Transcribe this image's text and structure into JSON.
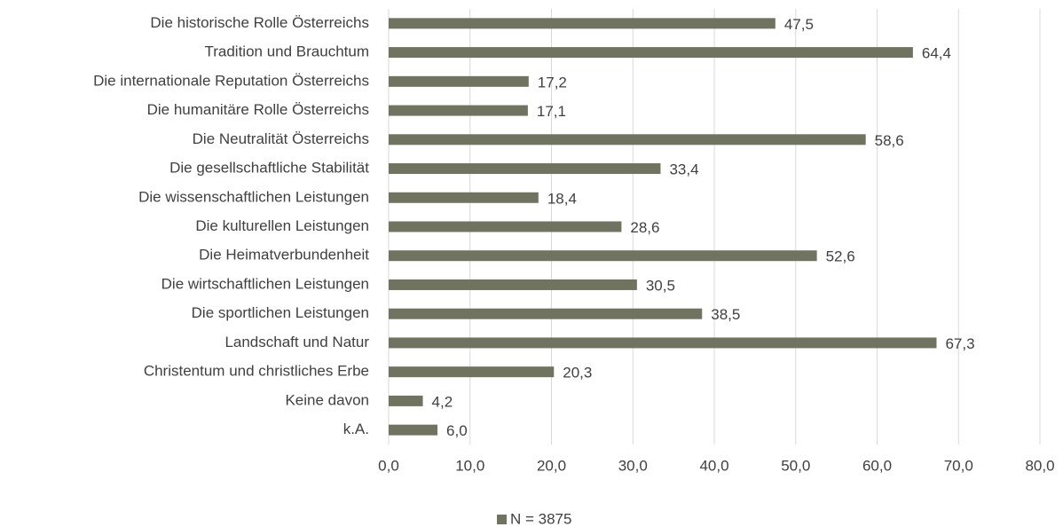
{
  "chart_data": {
    "type": "barh",
    "categories": [
      "Die historische Rolle Österreichs",
      "Tradition und Brauchtum",
      "Die internationale Reputation Österreichs",
      "Die humanitäre Rolle Österreichs",
      "Die Neutralität Österreichs",
      "Die gesellschaftliche Stabilität",
      "Die wissenschaftlichen Leistungen",
      "Die kulturellen Leistungen",
      "Die Heimatverbundenheit",
      "Die wirtschaftlichen Leistungen",
      "Die sportlichen Leistungen",
      "Landschaft und Natur",
      "Christentum und christliches Erbe",
      "Keine davon",
      "k.A."
    ],
    "series": [
      {
        "name": "N = 3875",
        "color": "#70735f",
        "values": [
          47.5,
          64.4,
          17.2,
          17.1,
          58.6,
          33.4,
          18.4,
          28.6,
          52.6,
          30.5,
          38.5,
          67.3,
          20.3,
          4.2,
          6.0
        ],
        "value_labels": [
          "47,5",
          "64,4",
          "17,2",
          "17,1",
          "58,6",
          "33,4",
          "18,4",
          "28,6",
          "52,6",
          "30,5",
          "38,5",
          "67,3",
          "20,3",
          "4,2",
          "6,0"
        ]
      }
    ],
    "xlim": [
      0,
      80
    ],
    "xticks": [
      {
        "value": 0,
        "label": "0,0"
      },
      {
        "value": 10,
        "label": "10,0"
      },
      {
        "value": 20,
        "label": "20,0"
      },
      {
        "value": 30,
        "label": "30,0"
      },
      {
        "value": 40,
        "label": "40,0"
      },
      {
        "value": 50,
        "label": "50,0"
      },
      {
        "value": 60,
        "label": "60,0"
      },
      {
        "value": 70,
        "label": "70,0"
      },
      {
        "value": 80,
        "label": "80,0"
      }
    ],
    "grid": true,
    "legend": "bottom"
  }
}
